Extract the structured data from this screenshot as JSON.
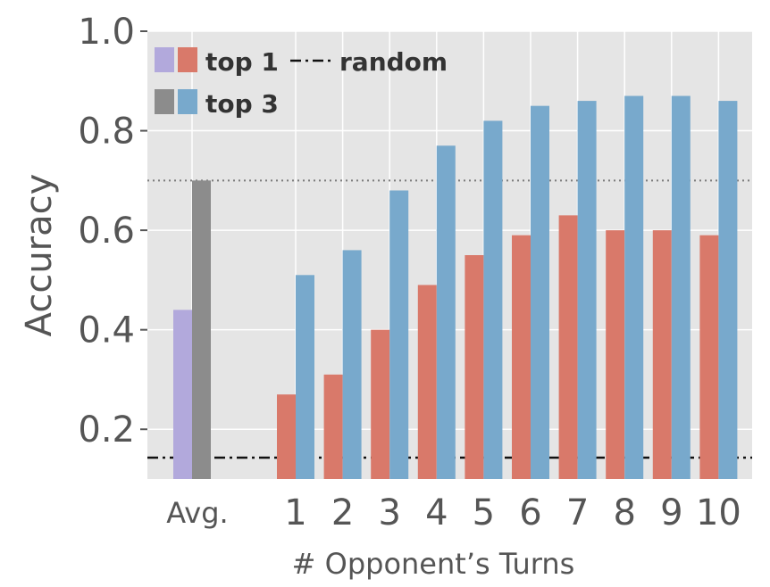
{
  "chart_data": {
    "type": "bar",
    "xlabel": "# Opponent’s Turns",
    "ylabel": "Accuracy",
    "ylim": [
      0.1,
      1.0
    ],
    "yticks": [
      "0.2",
      "0.4",
      "0.6",
      "0.8",
      "1.0"
    ],
    "grid": true,
    "legend_position": "top-left",
    "avg": {
      "label": "Avg.",
      "top1": 0.44,
      "top3": 0.7,
      "top1_color": "#b2a9dc",
      "top3_color": "#8c8c8c"
    },
    "categories": [
      "1",
      "2",
      "3",
      "4",
      "5",
      "6",
      "7",
      "8",
      "9",
      "10"
    ],
    "series": [
      {
        "name": "top 1",
        "color": "#d9796a",
        "values": [
          0.27,
          0.31,
          0.4,
          0.49,
          0.55,
          0.59,
          0.63,
          0.6,
          0.6,
          0.59
        ]
      },
      {
        "name": "top 3",
        "color": "#78a9cc",
        "values": [
          0.51,
          0.56,
          0.68,
          0.77,
          0.82,
          0.85,
          0.86,
          0.87,
          0.87,
          0.86
        ]
      }
    ],
    "reference_lines": [
      {
        "name": "random",
        "value": 0.143,
        "style": "dash-dot",
        "color": "#111111"
      },
      {
        "value": 0.7,
        "style": "dotted",
        "color": "#7a7a7a"
      }
    ],
    "legend": {
      "top1_label": "top 1",
      "top3_label": "top 3",
      "random_label": "random"
    },
    "colors": {
      "plot_background": "#e5e5e5",
      "grid": "#ffffff"
    }
  }
}
